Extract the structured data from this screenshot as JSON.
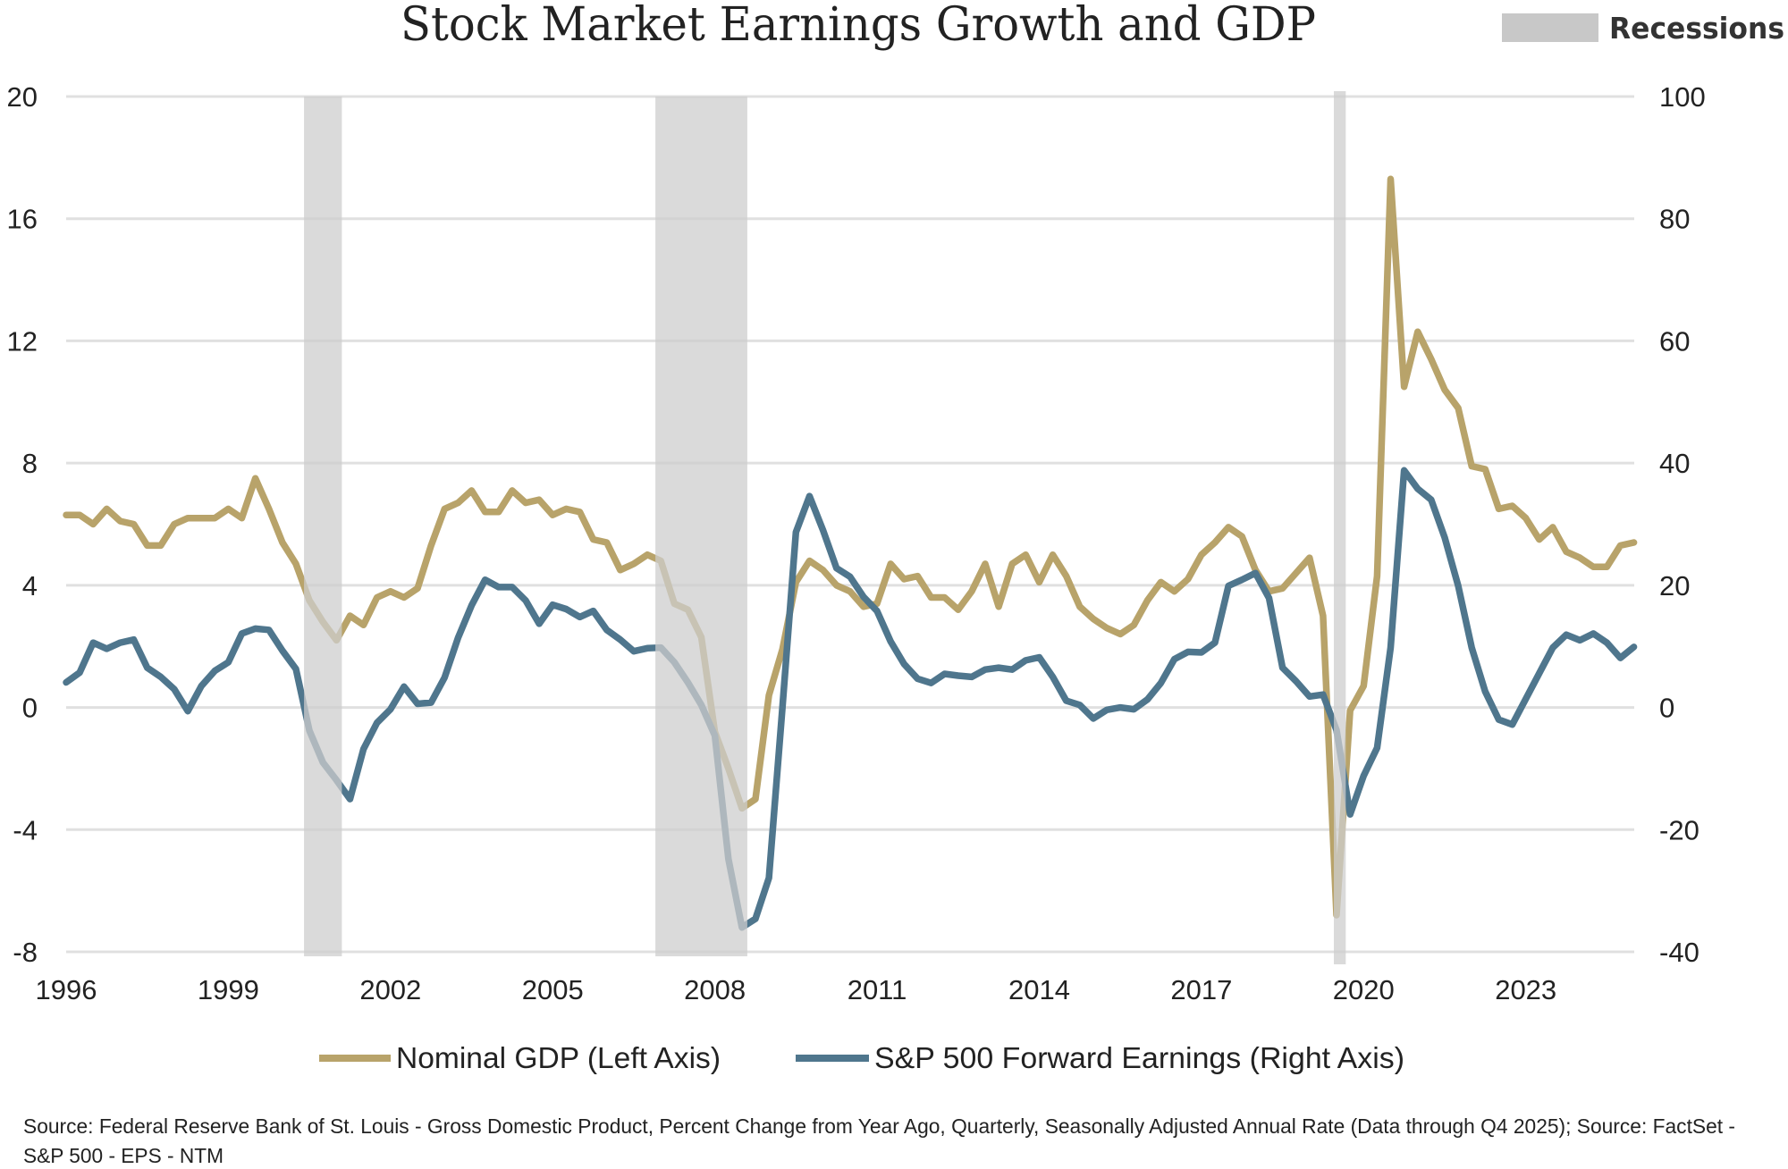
{
  "chart_data": {
    "type": "line",
    "title": "Stock Market Earnings Growth and GDP",
    "grid": true,
    "legend": "bottom",
    "recession_legend": "Recessions",
    "recession_color": "#D8D8D8",
    "xlim": [
      1996,
      2025
    ],
    "x_ticks": [
      "1996",
      "1999",
      "2002",
      "2005",
      "2008",
      "2011",
      "2014",
      "2017",
      "2020",
      "2023"
    ],
    "left_axis": {
      "ylim": [
        -8,
        20
      ],
      "ticks": [
        "20",
        "16",
        "12",
        "8",
        "4",
        "0",
        "-4",
        "-8"
      ]
    },
    "right_axis": {
      "ylim": [
        -40,
        100
      ],
      "ticks": [
        "100",
        "80",
        "60",
        "40",
        "20",
        "0",
        "-20",
        "-40"
      ]
    },
    "recessions": [
      [
        2000.4,
        2001.1
      ],
      [
        2006.9,
        2008.6
      ],
      [
        2019.45,
        2019.67
      ]
    ],
    "x": [
      1996,
      1996.25,
      1996.5,
      1996.75,
      1997,
      1997.25,
      1997.5,
      1997.75,
      1998,
      1998.25,
      1998.5,
      1998.75,
      1999,
      1999.25,
      1999.5,
      1999.75,
      2000,
      2000.25,
      2000.5,
      2000.75,
      2001,
      2001.25,
      2001.5,
      2001.75,
      2002,
      2002.25,
      2002.5,
      2002.75,
      2003,
      2003.25,
      2003.5,
      2003.75,
      2004,
      2004.25,
      2004.5,
      2004.75,
      2005,
      2005.25,
      2005.5,
      2005.75,
      2006,
      2006.25,
      2006.5,
      2006.75,
      2007,
      2007.25,
      2007.5,
      2007.75,
      2008,
      2008.25,
      2008.5,
      2008.75,
      2009,
      2009.25,
      2009.5,
      2009.75,
      2010,
      2010.25,
      2010.5,
      2010.75,
      2011,
      2011.25,
      2011.5,
      2011.75,
      2012,
      2012.25,
      2012.5,
      2012.75,
      2013,
      2013.25,
      2013.5,
      2013.75,
      2014,
      2014.25,
      2014.5,
      2014.75,
      2015,
      2015.25,
      2015.5,
      2015.75,
      2016,
      2016.25,
      2016.5,
      2016.75,
      2017,
      2017.25,
      2017.5,
      2017.75,
      2018,
      2018.25,
      2018.5,
      2018.75,
      2019,
      2019.25,
      2019.5,
      2019.75,
      2020,
      2020.25,
      2020.5,
      2020.75,
      2021,
      2021.25,
      2021.5,
      2021.75,
      2022,
      2022.25,
      2022.5,
      2022.75,
      2023,
      2023.25,
      2023.5,
      2023.75,
      2024,
      2024.25,
      2024.5,
      2024.75,
      2025
    ],
    "series": [
      {
        "name": "Nominal GDP (Left Axis)",
        "axis": "left",
        "color": "#B8A36A",
        "values": [
          6.3,
          6.3,
          6.0,
          6.5,
          6.1,
          6.0,
          5.3,
          5.3,
          6.0,
          6.2,
          6.2,
          6.2,
          6.5,
          6.2,
          7.5,
          6.5,
          5.4,
          4.7,
          3.5,
          2.8,
          2.2,
          3.0,
          2.7,
          3.6,
          3.8,
          3.6,
          3.9,
          5.3,
          6.5,
          6.7,
          7.1,
          6.4,
          6.4,
          7.1,
          6.7,
          6.8,
          6.3,
          6.5,
          6.4,
          5.5,
          5.4,
          4.5,
          4.7,
          5.0,
          4.8,
          3.4,
          3.2,
          2.3,
          -0.8,
          -2.0,
          -3.3,
          -3.0,
          0.4,
          1.9,
          4.1,
          4.8,
          4.5,
          4.0,
          3.8,
          3.3,
          3.4,
          4.7,
          4.2,
          4.3,
          3.6,
          3.6,
          3.2,
          3.8,
          4.7,
          3.3,
          4.7,
          5.0,
          4.1,
          5.0,
          4.3,
          3.3,
          2.9,
          2.6,
          2.4,
          2.7,
          3.5,
          4.1,
          3.8,
          4.2,
          5.0,
          5.4,
          5.9,
          5.6,
          4.5,
          3.8,
          3.9,
          4.4,
          4.9,
          3.0,
          -6.8,
          -0.1,
          0.7,
          4.3,
          17.3,
          10.5,
          12.3,
          11.4,
          10.4,
          9.8,
          7.9,
          7.8,
          6.5,
          6.6,
          6.2,
          5.5,
          5.9,
          5.1,
          4.9,
          4.6,
          4.6,
          5.3,
          5.4
        ]
      },
      {
        "name": "S&P 500 Forward Earnings (Right Axis)",
        "axis": "right",
        "color": "#4F768D",
        "values": [
          4.1,
          5.7,
          10.6,
          9.6,
          10.6,
          11.1,
          6.5,
          5.0,
          3.0,
          -0.6,
          3.5,
          6.0,
          7.4,
          12.1,
          12.9,
          12.7,
          9.3,
          6.3,
          -3.8,
          -9.0,
          -11.9,
          -15.0,
          -6.8,
          -2.5,
          -0.3,
          3.4,
          0.6,
          0.8,
          4.9,
          11.4,
          16.7,
          20.9,
          19.7,
          19.7,
          17.5,
          13.7,
          16.8,
          16.1,
          14.8,
          15.8,
          12.7,
          11.1,
          9.2,
          9.7,
          9.8,
          7.4,
          4.1,
          0.4,
          -4.6,
          -24.8,
          -36.0,
          -34.6,
          -27.9,
          0.0,
          28.7,
          34.6,
          29.0,
          22.8,
          21.4,
          18.1,
          15.8,
          10.8,
          7.1,
          4.7,
          4.0,
          5.5,
          5.2,
          5.0,
          6.2,
          6.5,
          6.2,
          7.7,
          8.2,
          5.0,
          1.1,
          0.4,
          -1.8,
          -0.4,
          0.0,
          -0.3,
          1.3,
          4.0,
          7.9,
          9.1,
          9.0,
          10.6,
          19.9,
          20.9,
          22.0,
          17.9,
          6.5,
          4.3,
          1.8,
          2.1,
          -3.7,
          -17.5,
          -11.2,
          -6.6,
          9.8,
          38.8,
          35.8,
          34.0,
          27.8,
          19.9,
          9.8,
          2.6,
          -2.0,
          -2.8,
          1.4,
          5.6,
          9.8,
          11.9,
          11.0,
          12.1,
          10.6,
          8.1,
          9.9
        ]
      }
    ]
  },
  "source": {
    "line1": "Source: Federal Reserve Bank of St. Louis - Gross Domestic Product, Percent Change from Year Ago, Quarterly, Seasonally Adjusted Annual Rate (Data through Q4 2025); Source: FactSet -",
    "line2": "S&P 500 - EPS - NTM"
  }
}
